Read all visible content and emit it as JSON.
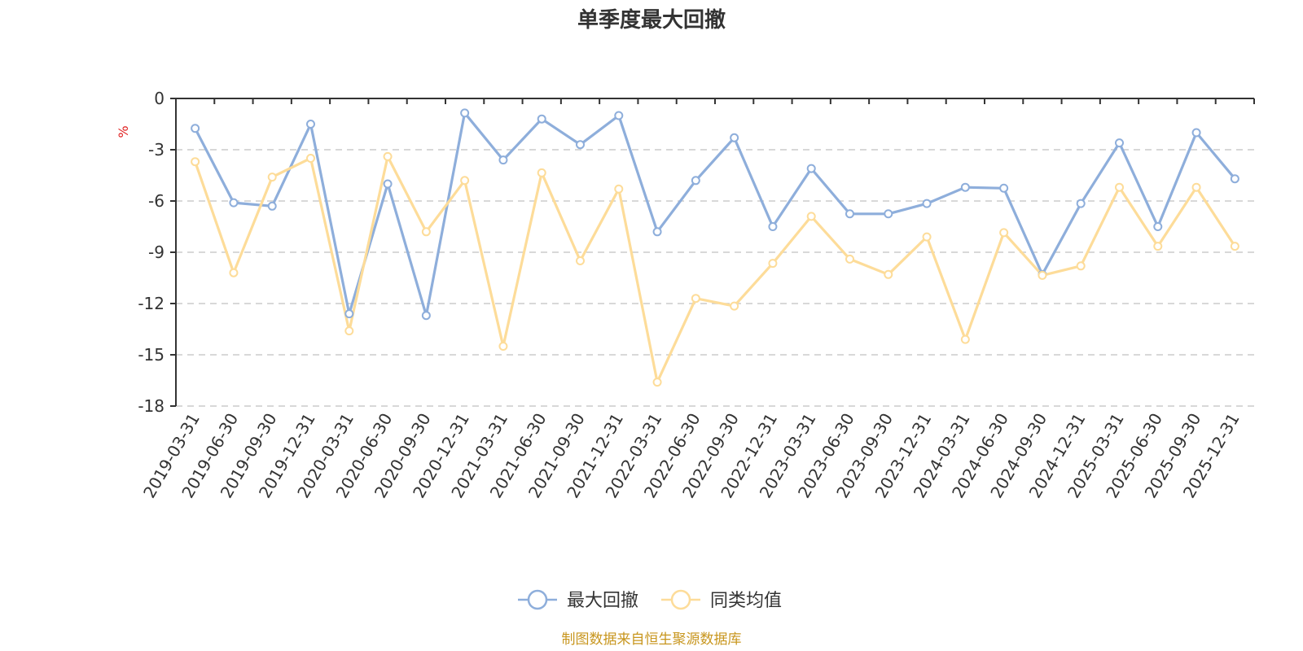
{
  "chart_data": {
    "type": "line",
    "title": "单季度最大回撤",
    "ylabel": "%",
    "ylim": [
      -18,
      0
    ],
    "yticks": [
      0,
      -3,
      -6,
      -9,
      -12,
      -15,
      -18
    ],
    "legend_position": "bottom-center",
    "grid": true,
    "source": "制图数据来自恒生聚源数据库",
    "categories": [
      "2019-03-31",
      "2019-06-30",
      "2019-09-30",
      "2019-12-31",
      "2020-03-31",
      "2020-06-30",
      "2020-09-30",
      "2020-12-31",
      "2021-03-31",
      "2021-06-30",
      "2021-09-30",
      "2021-12-31",
      "2022-03-31",
      "2022-06-30",
      "2022-09-30",
      "2022-12-31",
      "2023-03-31",
      "2023-06-30",
      "2023-09-30",
      "2023-12-31",
      "2024-03-31",
      "2024-06-30",
      "2024-09-30",
      "2024-12-31",
      "2025-03-31",
      "2025-06-30",
      "2025-09-30",
      "2025-12-31"
    ],
    "series": [
      {
        "name": "最大回撤",
        "color": "#8eaedb",
        "values": [
          -1.75,
          -6.1,
          -6.3,
          -1.5,
          -12.6,
          -5.0,
          -12.7,
          -0.85,
          -3.6,
          -1.2,
          -2.7,
          -1.0,
          -7.8,
          -4.8,
          -2.3,
          -7.5,
          -4.1,
          -6.75,
          -6.75,
          -6.15,
          -5.2,
          -5.25,
          -10.3,
          -6.15,
          -2.6,
          -7.5,
          -2.0,
          -4.7
        ]
      },
      {
        "name": "同类均值",
        "color": "#fddc99",
        "values": [
          -3.7,
          -10.2,
          -4.6,
          -3.5,
          -13.6,
          -3.4,
          -7.8,
          -4.8,
          -14.5,
          -4.35,
          -9.5,
          -5.3,
          -16.6,
          -11.7,
          -12.15,
          -9.65,
          -6.9,
          -9.4,
          -10.3,
          -8.1,
          -14.1,
          -7.85,
          -10.35,
          -9.8,
          -5.2,
          -8.65,
          -5.2,
          -8.65
        ]
      }
    ]
  }
}
